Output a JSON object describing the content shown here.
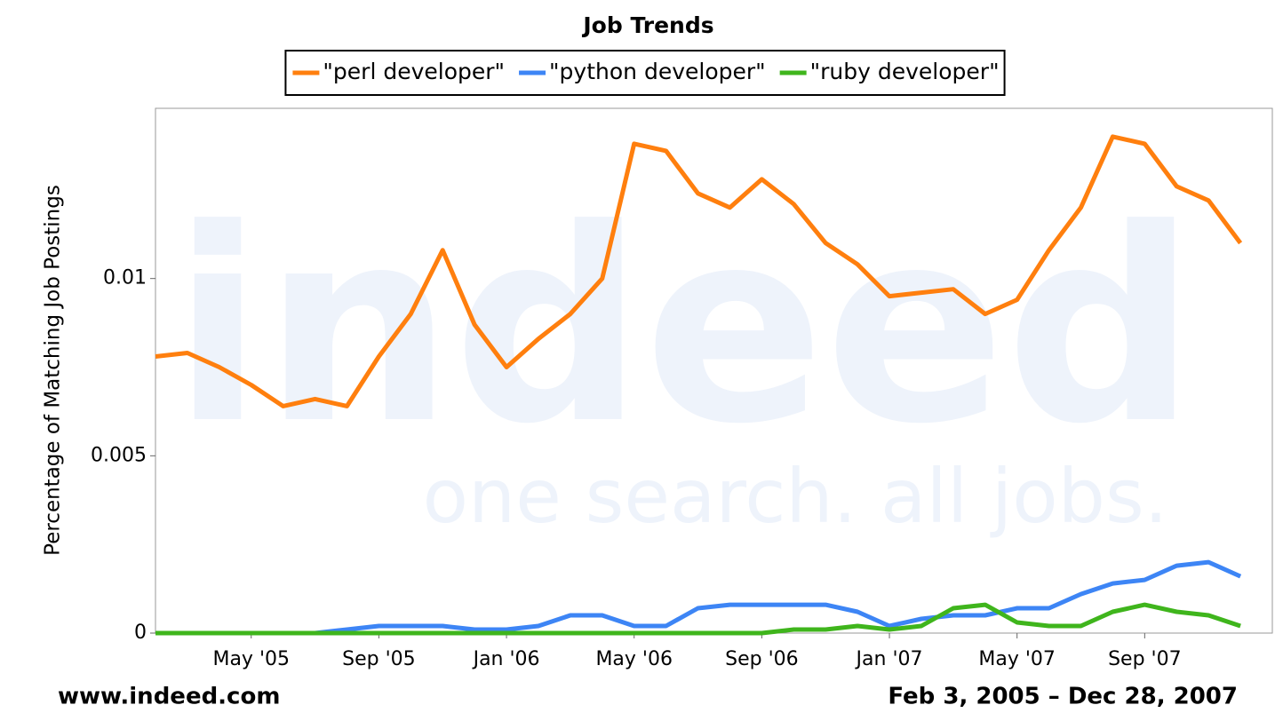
{
  "chart_data": {
    "type": "line",
    "title": "Job Trends",
    "y_label": "Percentage of Matching Job Postings",
    "x": [
      "2005-02",
      "2005-03",
      "2005-04",
      "2005-05",
      "2005-06",
      "2005-07",
      "2005-08",
      "2005-09",
      "2005-10",
      "2005-11",
      "2005-12",
      "2006-01",
      "2006-02",
      "2006-03",
      "2006-04",
      "2006-05",
      "2006-06",
      "2006-07",
      "2006-08",
      "2006-09",
      "2006-10",
      "2006-11",
      "2006-12",
      "2007-01",
      "2007-02",
      "2007-03",
      "2007-04",
      "2007-05",
      "2007-06",
      "2007-07",
      "2007-08",
      "2007-09",
      "2007-10",
      "2007-11",
      "2007-12"
    ],
    "series": [
      {
        "name": "\"perl developer\"",
        "color": "#ff7f0e",
        "values": [
          0.0078,
          0.0079,
          0.0075,
          0.007,
          0.0064,
          0.0066,
          0.0064,
          0.0078,
          0.009,
          0.0108,
          0.0087,
          0.0075,
          0.0083,
          0.009,
          0.01,
          0.0138,
          0.0136,
          0.0124,
          0.012,
          0.0128,
          0.0121,
          0.011,
          0.0104,
          0.0095,
          0.0096,
          0.0097,
          0.009,
          0.0094,
          0.0108,
          0.012,
          0.014,
          0.0138,
          0.0126,
          0.0122,
          0.011
        ]
      },
      {
        "name": "\"python developer\"",
        "color": "#3d85f5",
        "values": [
          0,
          0,
          0,
          0,
          0,
          0,
          0.0001,
          0.0002,
          0.0002,
          0.0002,
          0.0001,
          0.0001,
          0.0002,
          0.0005,
          0.0005,
          0.0002,
          0.0002,
          0.0007,
          0.0008,
          0.0008,
          0.0008,
          0.0008,
          0.0006,
          0.0002,
          0.0004,
          0.0005,
          0.0005,
          0.0007,
          0.0007,
          0.0011,
          0.0014,
          0.0015,
          0.0019,
          0.002,
          0.0016
        ]
      },
      {
        "name": "\"ruby developer\"",
        "color": "#3fb51c",
        "values": [
          0,
          0,
          0,
          0,
          0,
          0,
          0,
          0,
          0,
          0,
          0,
          0,
          0,
          0,
          0,
          0,
          0,
          0,
          0,
          0,
          0.0001,
          0.0001,
          0.0002,
          0.0001,
          0.0002,
          0.0007,
          0.0008,
          0.0003,
          0.0002,
          0.0002,
          0.0006,
          0.0008,
          0.0006,
          0.0005,
          0.0002
        ]
      }
    ],
    "xlim": [
      "2005-02",
      "2008-01"
    ],
    "xticks": [
      {
        "value": "2005-05",
        "label": "May '05"
      },
      {
        "value": "2005-09",
        "label": "Sep '05"
      },
      {
        "value": "2006-01",
        "label": "Jan '06"
      },
      {
        "value": "2006-05",
        "label": "May '06"
      },
      {
        "value": "2006-09",
        "label": "Sep '06"
      },
      {
        "value": "2007-01",
        "label": "Jan '07"
      },
      {
        "value": "2007-05",
        "label": "May '07"
      },
      {
        "value": "2007-09",
        "label": "Sep '07"
      }
    ],
    "ylim": [
      0,
      0.0148
    ],
    "yticks": [
      0,
      0.005,
      0.01
    ],
    "legend": "top",
    "watermark": {
      "logo": "indeed",
      "tagline": "one search. all jobs."
    },
    "source": "www.indeed.com",
    "date_range": "Feb 3, 2005 – Dec 28, 2007"
  }
}
